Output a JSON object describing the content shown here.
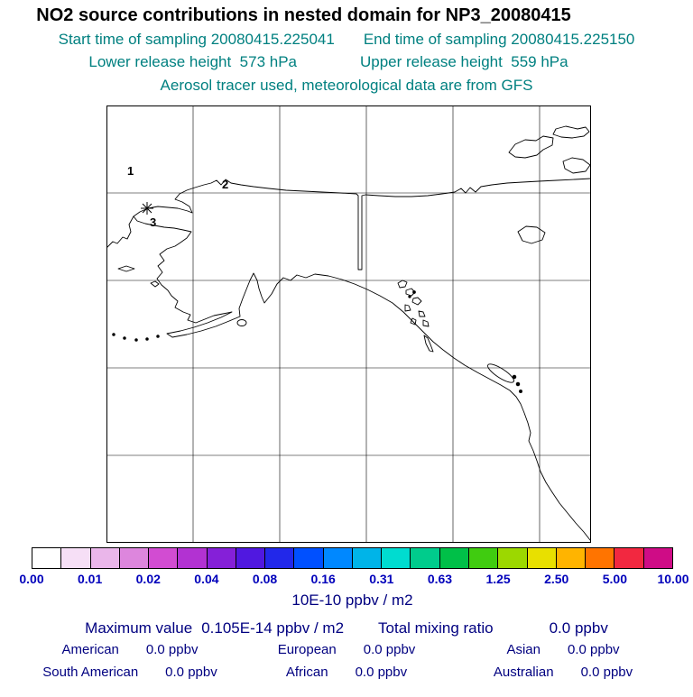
{
  "title": "NO2 source contributions in nested domain for NP3_20080415",
  "subtitle": {
    "start_time": "Start time of sampling 20080415.225041",
    "end_time": "End time of sampling 20080415.225150",
    "lower_release": "Lower release height  573 hPa",
    "upper_release": "Upper release height  559 hPa",
    "tracer_info": "Aerosol tracer used, meteorological data are from GFS"
  },
  "map": {
    "markers": [
      {
        "label": "1"
      },
      {
        "label": "2"
      },
      {
        "label": "3"
      }
    ]
  },
  "colorbar": {
    "tick_labels": [
      "0.00",
      "0.01",
      "0.02",
      "0.04",
      "0.08",
      "0.16",
      "0.31",
      "0.63",
      "1.25",
      "2.50",
      "5.00",
      "10.00"
    ],
    "segment_colors": [
      "#ffffff",
      "#f6dff6",
      "#eab6ea",
      "#dd86dd",
      "#d24cd2",
      "#b232d2",
      "#8520d8",
      "#5018e0",
      "#2228ea",
      "#0050ff",
      "#0088ff",
      "#00b4e8",
      "#00dcd0",
      "#00cc8c",
      "#00c048",
      "#40cc10",
      "#9cd800",
      "#e8e000",
      "#ffb400",
      "#ff7400",
      "#f22840",
      "#cf0c86"
    ],
    "units_label": "10E-10 ppbv / m2"
  },
  "stats": {
    "max_label": "Maximum value",
    "max_value": "0.105E-14 ppbv / m2",
    "total_label": "Total mixing ratio",
    "total_value": "0.0 ppbv",
    "regions": [
      {
        "label": "American",
        "value": "0.0 ppbv"
      },
      {
        "label": "European",
        "value": "0.0 ppbv"
      },
      {
        "label": "Asian",
        "value": "0.0 ppbv"
      },
      {
        "label": "South American",
        "value": "0.0 ppbv"
      },
      {
        "label": "African",
        "value": "0.0 ppbv"
      },
      {
        "label": "Australian",
        "value": "0.0 ppbv"
      }
    ]
  },
  "theme": {
    "subtitle_color": "#008080",
    "stats_color": "#000080",
    "tick_color": "#0000bb"
  },
  "chart_data": {
    "type": "heatmap",
    "title": "NO2 source contributions in nested domain for NP3_20080415",
    "colorbar_tick_values": [
      0.0,
      0.01,
      0.02,
      0.04,
      0.08,
      0.16,
      0.31,
      0.63,
      1.25,
      2.5,
      5.0,
      10.0
    ],
    "colorbar_units": "10E-10 ppbv / m2",
    "maximum_value": "0.105E-14 ppbv / m2",
    "total_mixing_ratio": "0.0 ppbv",
    "source_contributions_ppbv": {
      "American": 0.0,
      "European": 0.0,
      "Asian": 0.0,
      "South American": 0.0,
      "African": 0.0,
      "Australian": 0.0
    },
    "station_markers": [
      "1",
      "2",
      "3"
    ]
  }
}
